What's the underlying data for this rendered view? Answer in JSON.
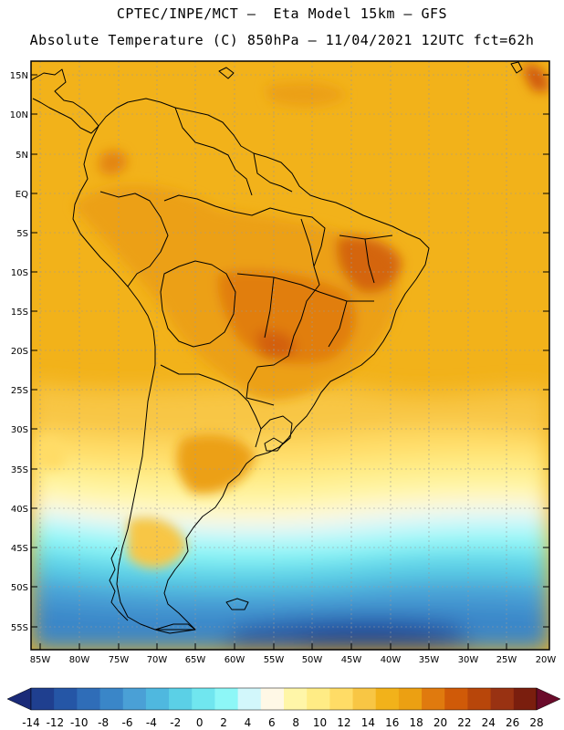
{
  "header": {
    "line1": "CPTEC/INPE/MCT –  Eta Model 15km – GFS",
    "line2": "Absolute Temperature (C) 850hPa – 11/04/2021 12UTC fct=62h"
  },
  "map": {
    "lat_labels": [
      "15N",
      "10N",
      "5N",
      "EQ",
      "5S",
      "10S",
      "15S",
      "20S",
      "25S",
      "30S",
      "35S",
      "40S",
      "45S",
      "50S",
      "55S"
    ],
    "lon_labels": [
      "85W",
      "80W",
      "75W",
      "70W",
      "65W",
      "60W",
      "55W",
      "50W",
      "45W",
      "40W",
      "35W",
      "30W",
      "25W",
      "20W"
    ]
  },
  "colorbar": {
    "labels": [
      "-14",
      "-12",
      "-10",
      "-8",
      "-6",
      "-4",
      "-2",
      "0",
      "2",
      "4",
      "6",
      "8",
      "10",
      "12",
      "14",
      "16",
      "18",
      "20",
      "22",
      "24",
      "26",
      "28"
    ],
    "colors": [
      "#1f3f8f",
      "#2556a6",
      "#2f6db8",
      "#3a86c8",
      "#4aa0d6",
      "#4fb8df",
      "#5bd0e6",
      "#70e6ef",
      "#8df7f7",
      "#d2f7fb",
      "#fff8e6",
      "#fff6a8",
      "#ffec85",
      "#ffdc66",
      "#f8c644",
      "#f2b21a",
      "#eca012",
      "#e07a0e",
      "#d05a08",
      "#b8460a",
      "#993212",
      "#7a1e0e"
    ],
    "under_color": "#1a2a78",
    "over_color": "#6a0b2a"
  }
}
